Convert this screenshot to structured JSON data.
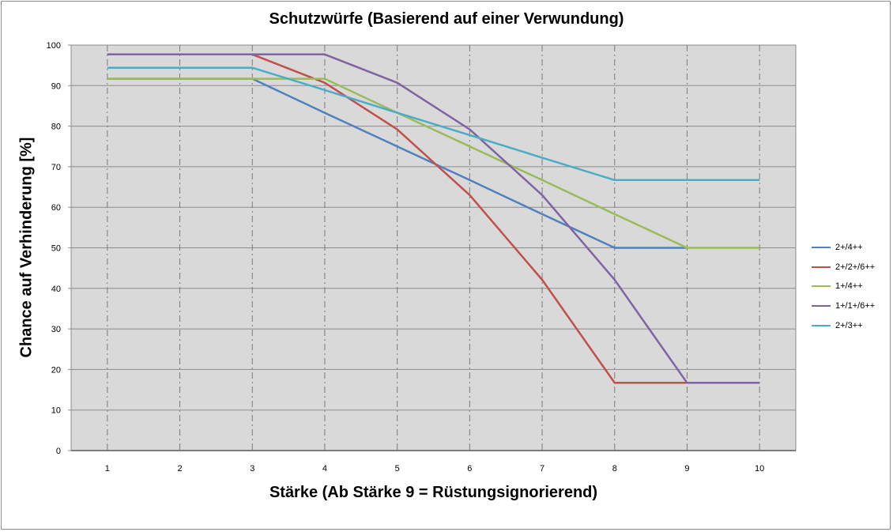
{
  "chart_data": {
    "type": "line",
    "title": "Schutzwürfe (Basierend auf einer Verwundung)",
    "xlabel": "Stärke (Ab Stärke 9 = Rüstungsignorierend)",
    "ylabel": "Chance auf Verhinderung [%]",
    "x": [
      1,
      2,
      3,
      4,
      5,
      6,
      7,
      8,
      9,
      10
    ],
    "xlim": [
      0.5,
      10.5
    ],
    "ylim": [
      0,
      100
    ],
    "yticks": [
      0,
      10,
      20,
      30,
      40,
      50,
      60,
      70,
      80,
      90,
      100
    ],
    "grid": true,
    "legend_position": "right",
    "background": "#d9d9d9",
    "series": [
      {
        "name": "2+/4++",
        "color": "#4f81bd",
        "values": [
          91.7,
          91.7,
          91.7,
          83.3,
          75,
          66.7,
          58.3,
          50,
          50,
          null
        ]
      },
      {
        "name": "2+/2+/6++",
        "color": "#c0504d",
        "values": [
          97.7,
          97.7,
          97.7,
          90.7,
          79.2,
          63,
          42.1,
          16.7,
          16.7,
          null
        ]
      },
      {
        "name": "1+/4++",
        "color": "#9bbb59",
        "values": [
          91.7,
          91.7,
          91.7,
          91.7,
          83.3,
          75,
          66.7,
          58.3,
          50,
          50
        ]
      },
      {
        "name": "1+/1+/6++",
        "color": "#8064a2",
        "values": [
          97.7,
          97.7,
          97.7,
          97.7,
          90.7,
          79.2,
          63,
          42.1,
          16.7,
          16.7
        ]
      },
      {
        "name": "2+/3++",
        "color": "#4bacc6",
        "values": [
          94.4,
          94.4,
          94.4,
          88.9,
          83.3,
          77.8,
          72.2,
          66.7,
          66.7,
          66.7
        ]
      }
    ]
  }
}
